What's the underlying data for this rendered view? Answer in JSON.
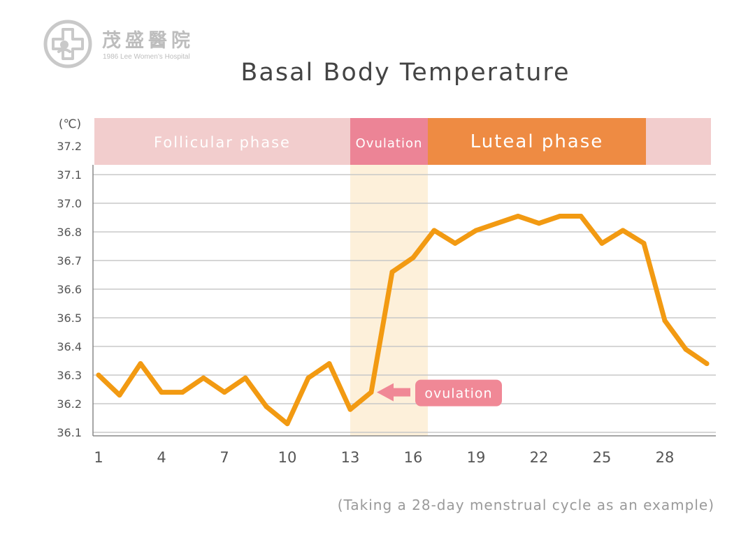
{
  "logo": {
    "name": "茂盛醫院",
    "subtitle": "1986 Lee Women’s Hospital"
  },
  "chart_data": {
    "type": "line",
    "title": "Basal Body Temperature",
    "note": "(Taking a 28-day menstrual cycle as an example)",
    "unit": "(℃)",
    "xlabel": "",
    "ylabel": "",
    "xlim": [
      1,
      30
    ],
    "ylim": [
      36.1,
      37.2
    ],
    "x_ticks": [
      "1",
      "4",
      "7",
      "10",
      "13",
      "16",
      "19",
      "22",
      "25",
      "28"
    ],
    "x_tick_values": [
      1,
      4,
      7,
      10,
      13,
      16,
      19,
      22,
      25,
      28
    ],
    "y_ticks": [
      "36.1",
      "36.2",
      "36.3",
      "36.4",
      "36.5",
      "36.6",
      "36.7",
      "36.8",
      "37.0",
      "37.1",
      "37.2"
    ],
    "grid": true,
    "series": [
      {
        "color": "#f29a12",
        "x": [
          1,
          2,
          3,
          4,
          5,
          6,
          7,
          8,
          9,
          10,
          11,
          12,
          13,
          14,
          15,
          16,
          17,
          18,
          19,
          20,
          21,
          22,
          23,
          24,
          25,
          26,
          27,
          28,
          29,
          30
        ],
        "y": [
          36.3,
          36.23,
          36.34,
          36.24,
          36.24,
          36.29,
          36.24,
          36.29,
          36.19,
          36.13,
          36.29,
          36.34,
          36.18,
          36.24,
          36.66,
          36.71,
          36.81,
          36.76,
          36.81,
          36.86,
          36.91,
          36.86,
          36.91,
          36.91,
          36.76,
          36.81,
          36.76,
          36.49,
          36.39,
          36.34
        ]
      }
    ],
    "phases": [
      {
        "label": "Follicular phase",
        "from": 0.8,
        "to": 13.0,
        "color": "#f2cdcd",
        "highlight": ""
      },
      {
        "label": "Ovulation",
        "from": 13.0,
        "to": 16.7,
        "color": "#ec8496",
        "highlight": "#fdf0da"
      },
      {
        "label": "Luteal phase",
        "from": 16.7,
        "to": 27.1,
        "color": "#ee8b43",
        "highlight": ""
      },
      {
        "label": "",
        "from": 27.1,
        "to": 30.2,
        "color": "#f2cdcd",
        "highlight": ""
      }
    ],
    "annotation": {
      "label": "ovulation",
      "x": 14,
      "y": 36.24,
      "color": "#f08896"
    },
    "grid_color": "#c8c8c8",
    "axis_color": "#888888",
    "tick_color": "#555555"
  }
}
